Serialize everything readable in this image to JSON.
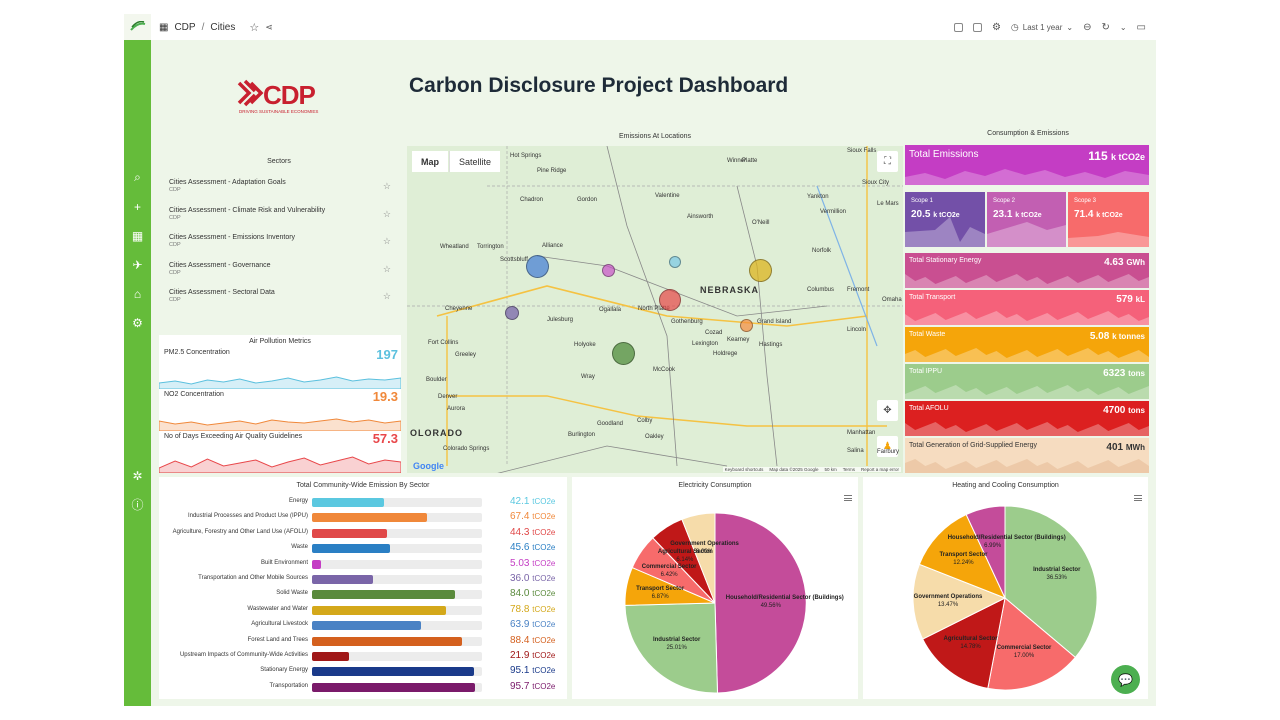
{
  "breadcrumb": {
    "root": "CDP",
    "sep": "/",
    "current": "Cities"
  },
  "toolbar": {
    "time_range": "Last 1 year"
  },
  "dashboard": {
    "title": "Carbon Disclosure Project Dashboard"
  },
  "logo": {
    "text": "CDP",
    "tagline": "DRIVING SUSTAINABLE ECONOMIES",
    "color": "#c8202f"
  },
  "sectors": {
    "title": "Sectors",
    "items": [
      {
        "name": "Cities Assessment - Adaptation Goals",
        "source": "CDP"
      },
      {
        "name": "Cities Assessment - Climate Risk and Vulnerability",
        "source": "CDP"
      },
      {
        "name": "Cities Assessment - Emissions Inventory",
        "source": "CDP"
      },
      {
        "name": "Cities Assessment - Governance",
        "source": "CDP"
      },
      {
        "name": "Cities Assessment - Sectoral Data",
        "source": "CDP"
      }
    ]
  },
  "air": {
    "title": "Air Pollution Metrics",
    "metrics": [
      {
        "label": "PM2.5 Concentration",
        "value": "197",
        "color": "#5bc0de"
      },
      {
        "label": "NO2 Concentration",
        "value": "19.3",
        "color": "#f0883a"
      },
      {
        "label": "No of Days Exceeding Air Quality Guidelines",
        "value": "57.3",
        "color": "#e8474a"
      }
    ]
  },
  "map": {
    "title": "Emissions At Locations",
    "tab_map": "Map",
    "tab_satellite": "Satellite",
    "state": "NEBRASKA",
    "state2": "OLORADO",
    "cities": [
      "Hot Springs",
      "Pine Ridge",
      "Chadron",
      "Gordon",
      "Valentine",
      "Ainsworth",
      "O'Neill",
      "Winner",
      "Platte",
      "Yankton",
      "Vermillion",
      "Sioux Falls",
      "Sioux City",
      "Le Mars",
      "Norfolk",
      "Wheatland",
      "Torrington",
      "Alliance",
      "Scottsbluff",
      "Cheyenne",
      "Julesburg",
      "Ogallala",
      "North Platte",
      "Gothenburg",
      "Kearney",
      "Grand Island",
      "Lincoln",
      "Columbus",
      "Fremont",
      "Omaha",
      "Hastings",
      "Holdrege",
      "Lexington",
      "Cozad",
      "Fort Collins",
      "Greeley",
      "Holyoke",
      "Boulder",
      "Denver",
      "Aurora",
      "Wray",
      "McCook",
      "Goodland",
      "Colby",
      "Oakley",
      "Burlington",
      "Colorado Springs",
      "Manhattan",
      "Salina",
      "Fairbury"
    ],
    "footer": [
      "Keyboard shortcuts",
      "Map data ©2025 Google",
      "50 km",
      "Terms",
      "Report a map error"
    ],
    "google": "Google"
  },
  "consumption": {
    "title": "Consumption & Emissions",
    "total": {
      "label": "Total Emissions",
      "value": "115",
      "unit": "k tCO2e",
      "color": "#c43dc4"
    },
    "scopes": [
      {
        "label": "Scope 1",
        "value": "20.5",
        "unit": "k tCO2e",
        "color": "#7350a8"
      },
      {
        "label": "Scope 2",
        "value": "23.1",
        "unit": "k tCO2e",
        "color": "#c25fb2"
      },
      {
        "label": "Scope 3",
        "value": "71.4",
        "unit": "k tCO2e",
        "color": "#f76b6b"
      }
    ],
    "kpis": [
      {
        "label": "Total Stationary Energy",
        "value": "4.63",
        "unit": "GWh",
        "color": "#c94f91"
      },
      {
        "label": "Total Transport",
        "value": "579",
        "unit": "kL",
        "color": "#f5617a"
      },
      {
        "label": "Total Waste",
        "value": "5.08",
        "unit": "k tonnes",
        "color": "#f5a50a"
      },
      {
        "label": "Total IPPU",
        "value": "6323",
        "unit": "tons",
        "color": "#9ccc8c"
      },
      {
        "label": "Total AFOLU",
        "value": "4700",
        "unit": "tons",
        "color": "#dc2020"
      },
      {
        "label": "Total Generation of Grid-Supplied Energy",
        "value": "401",
        "unit": "MWh",
        "color": "#f6dcc0"
      }
    ]
  },
  "chart_data": [
    {
      "type": "bar",
      "title": "Total Community-Wide Emission By Sector",
      "unit": "tCO2e",
      "xlim": [
        0,
        100
      ],
      "categories": [
        "Energy",
        "Industrial Processes and Product Use (IPPU)",
        "Agriculture, Forestry and Other Land Use (AFOLU)",
        "Waste",
        "Built Environment",
        "Transportation and Other Mobile Sources",
        "Solid Waste",
        "Wastewater and Water",
        "Agricultural Livestock",
        "Forest Land and Trees",
        "Upstream Impacts of Community-Wide Activities",
        "Stationary Energy",
        "Transportation"
      ],
      "values": [
        42.1,
        67.4,
        44.3,
        45.6,
        5.03,
        36.0,
        84.0,
        78.8,
        63.9,
        88.4,
        21.9,
        95.1,
        95.7
      ],
      "value_labels": [
        "42.1",
        "67.4",
        "44.3",
        "45.6",
        "5.03",
        "36.0",
        "84.0",
        "78.8",
        "63.9",
        "88.4",
        "21.9",
        "95.1",
        "95.7"
      ],
      "colors": [
        "#5bc8e0",
        "#f0883a",
        "#e04848",
        "#2a7fc4",
        "#c43dc4",
        "#7a65a8",
        "#5a8a3c",
        "#d4a81a",
        "#4a82c4",
        "#d4601e",
        "#a01818",
        "#1a3a8a",
        "#7a1a6a"
      ]
    },
    {
      "type": "pie",
      "title": "Electricity Consumption",
      "slices": [
        {
          "name": "Household/Residential Sector (Buildings)",
          "value": 49.56,
          "label": "49.56%",
          "color": "#c44c9a"
        },
        {
          "name": "Industrial Sector",
          "value": 25.01,
          "label": "25.01%",
          "color": "#9ccc8c"
        },
        {
          "name": "Transport Sector",
          "value": 6.87,
          "label": "6.87%",
          "color": "#f5a50a"
        },
        {
          "name": "Commercial Sector",
          "value": 6.42,
          "label": "6.42%",
          "color": "#f76b6b"
        },
        {
          "name": "Agricultural Sector",
          "value": 6.14,
          "label": "6.14%",
          "color": "#c01818"
        },
        {
          "name": "Government Operations",
          "value": 6.0,
          "label": "6.00%",
          "color": "#f6dcaa"
        }
      ]
    },
    {
      "type": "pie",
      "title": "Heating and Cooling Consumption",
      "slices": [
        {
          "name": "Industrial Sector",
          "value": 36.53,
          "label": "36.53%",
          "color": "#9ccc8c"
        },
        {
          "name": "Commercial Sector",
          "value": 17.0,
          "label": "17.00%",
          "color": "#f76b6b"
        },
        {
          "name": "Agricultural Sector",
          "value": 14.78,
          "label": "14.78%",
          "color": "#c01818"
        },
        {
          "name": "Government Operations",
          "value": 13.47,
          "label": "13.47%",
          "color": "#f6dcaa"
        },
        {
          "name": "Transport Sector",
          "value": 12.24,
          "label": "12.24%",
          "color": "#f5a50a"
        },
        {
          "name": "Household/Residential Sector (Buildings)",
          "value": 6.99,
          "label": "6.99%",
          "color": "#c44c9a"
        }
      ]
    }
  ]
}
